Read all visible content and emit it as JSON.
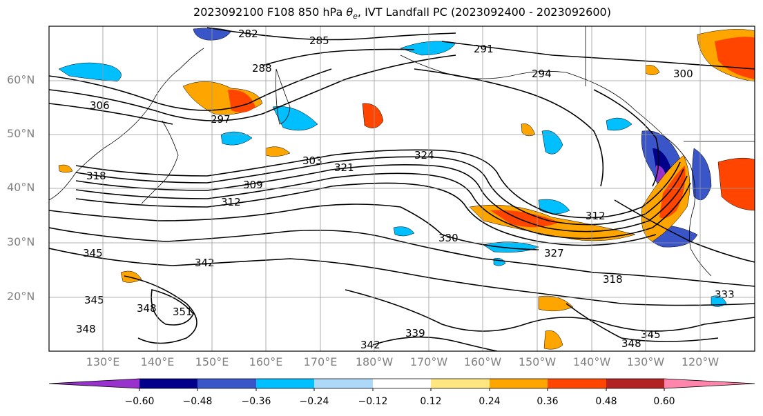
{
  "title_prefix": "2023092100 F108 850 hPa ",
  "title_symbol": "θ",
  "title_sub": "e",
  "title_suffix": ", IVT Landfall PC (2023092400 - 2023092600)",
  "lat_labels": [
    "60°N",
    "50°N",
    "40°N",
    "30°N",
    "20°N"
  ],
  "lon_labels": [
    "130°E",
    "140°E",
    "150°E",
    "160°E",
    "170°E",
    "180°W",
    "170°W",
    "160°W",
    "150°W",
    "140°W",
    "130°W",
    "120°W"
  ],
  "colorbar": {
    "colors": [
      "#9932cc",
      "#00008b",
      "#3a55c8",
      "#00bfff",
      "#add8f7",
      "#ffffff",
      "#ffe680",
      "#ffa500",
      "#ff4500",
      "#b22222",
      "#ff85aa"
    ],
    "tick_labels": [
      "−0.60",
      "−0.48",
      "−0.36",
      "−0.24",
      "−0.12",
      "0.12",
      "0.24",
      "0.36",
      "0.48",
      "0.60"
    ]
  },
  "contour_labels": [
    "282",
    "285",
    "288",
    "291",
    "294",
    "297",
    "300",
    "303",
    "306",
    "309",
    "312",
    "312",
    "318",
    "318",
    "321",
    "324",
    "327",
    "330",
    "333",
    "339",
    "342",
    "342",
    "345",
    "345",
    "345",
    "348",
    "348",
    "348",
    "351"
  ]
}
